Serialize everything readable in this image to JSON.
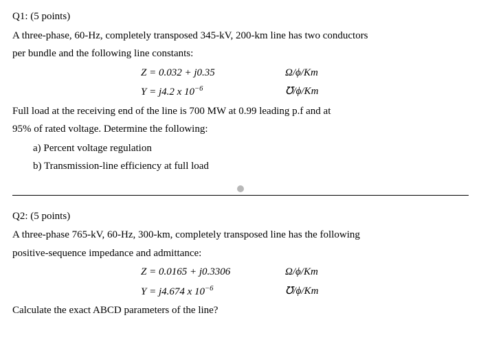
{
  "q1": {
    "header": "Q1: (5 points)",
    "line1": "A three-phase, 60-Hz, completely transposed 345-kV, 200-km line has two conductors",
    "line2": "per bundle and the following line constants:",
    "eq1_left": "Z = 0.032 + j0.35",
    "eq1_right": "Ω/ϕ/Km",
    "eq2_left_pre": "Y = j4.2 x 10",
    "eq2_left_sup": "−6",
    "eq2_right": "℧/ϕ/Km",
    "line3": "Full load at the receiving end of the line is 700 MW at 0.99 leading p.f and at",
    "line4": "95% of rated voltage. Determine the following:",
    "item_a": "a)  Percent voltage regulation",
    "item_b": "b)  Transmission-line efficiency at full load"
  },
  "q2": {
    "header": "Q2: (5 points)",
    "line1": "A three-phase 765-kV, 60-Hz, 300-km, completely transposed line has the following",
    "line2": "positive-sequence impedance and admittance:",
    "eq1_left": "Z = 0.0165 + j0.3306",
    "eq1_right": "Ω/ϕ/Km",
    "eq2_left_pre": "Y = j4.674 x 10",
    "eq2_left_sup": "−6",
    "eq2_right": "℧/ϕ/Km",
    "line3": "Calculate the exact ABCD parameters of the line?"
  },
  "style": {
    "font_family": "Georgia, Times New Roman, serif",
    "font_size_pt": 15,
    "text_color": "#000000",
    "background_color": "#ffffff",
    "dot_color": "#b8b8b8",
    "line_color": "#000000"
  }
}
